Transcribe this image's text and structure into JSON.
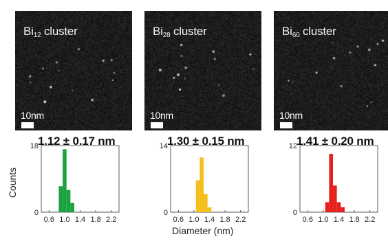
{
  "panels": [
    {
      "label_base": "Bi",
      "label_sub": "12",
      "label_rest": " cluster",
      "scale_text": "10nm",
      "mean": "1.12 ± 0.17 nm",
      "color": "#1aa340",
      "ymax_label": "18",
      "ymax": 18,
      "bars": [
        {
          "x": 0.9,
          "value": 7
        },
        {
          "x": 1.0,
          "value": 17
        },
        {
          "x": 1.1,
          "value": 6
        },
        {
          "x": 1.2,
          "value": 2.5
        }
      ]
    },
    {
      "label_base": "Bi",
      "label_sub": "28",
      "label_rest": " cluster",
      "scale_text": "10nm",
      "mean": "1.30 ± 0.15 nm",
      "color": "#f4bf1b",
      "ymax_label": "14",
      "ymax": 14,
      "bars": [
        {
          "x": 1.1,
          "value": 6.7
        },
        {
          "x": 1.2,
          "value": 11.5
        },
        {
          "x": 1.3,
          "value": 3.8
        },
        {
          "x": 1.4,
          "value": 1.0
        }
      ]
    },
    {
      "label_base": "Bi",
      "label_sub": "60",
      "label_rest": " cluster",
      "scale_text": "10nm",
      "mean": "1.41 ± 0.20 nm",
      "color": "#e8201d",
      "ymax_label": "12",
      "ymax": 12,
      "bars": [
        {
          "x": 1.1,
          "value": 1.8
        },
        {
          "x": 1.2,
          "value": 10.5
        },
        {
          "x": 1.3,
          "value": 4.8
        },
        {
          "x": 1.4,
          "value": 1.8
        },
        {
          "x": 1.5,
          "value": 0.9
        }
      ]
    }
  ],
  "x_ticks": [
    "0.6",
    "1.0",
    "1.4",
    "1.8",
    "2.2"
  ],
  "x_tick_values": [
    0.6,
    1.0,
    1.4,
    1.8,
    2.2
  ],
  "y_zero_label": "0",
  "xlabel": "Diameter (nm)",
  "ylabel": "Counts"
}
